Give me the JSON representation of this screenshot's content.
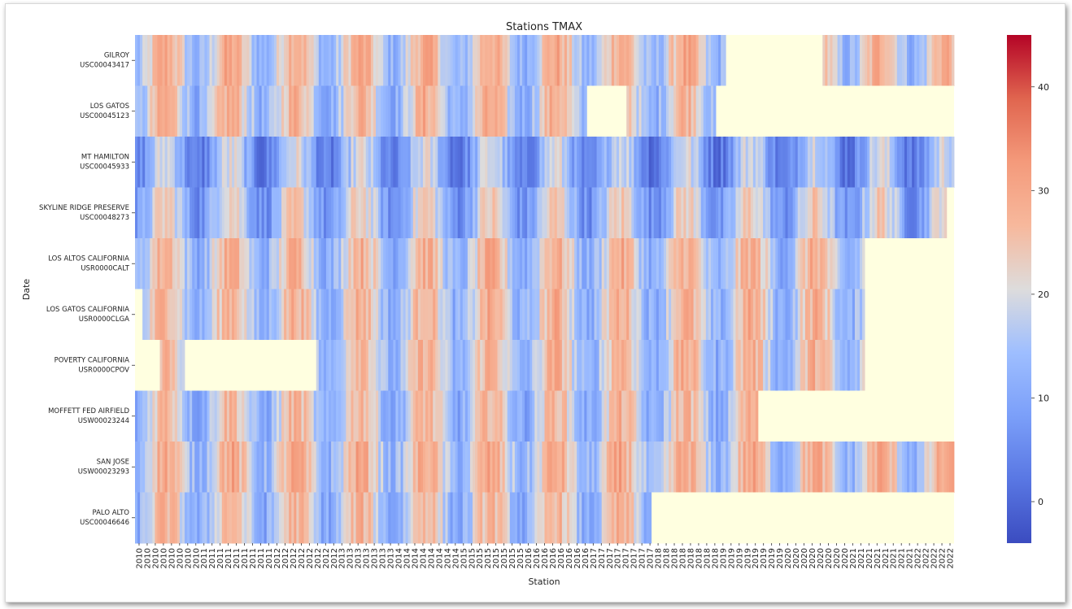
{
  "chart_data": {
    "type": "heatmap",
    "title": "Stations TMAX",
    "xlabel": "Station",
    "ylabel": "Date",
    "colormap": "coolwarm",
    "missing_color": "#ffffe0",
    "colorbar": {
      "min": -4,
      "max": 45,
      "ticks": [
        0,
        10,
        20,
        30,
        40
      ]
    },
    "rows": [
      {
        "name": "GILROY",
        "id": "USC00043417",
        "coverage": [
          [
            0,
            0.72
          ],
          [
            0.84,
            1.0
          ]
        ]
      },
      {
        "name": "LOS GATOS",
        "id": "USC00045123",
        "coverage": [
          [
            0,
            0.55
          ],
          [
            0.6,
            0.71
          ]
        ]
      },
      {
        "name": "MT HAMILTON",
        "id": "USC00045933",
        "coverage": [
          [
            0,
            1.0
          ]
        ]
      },
      {
        "name": "SKYLINE RIDGE PRESERVE",
        "id": "USC00048273",
        "coverage": [
          [
            0,
            0.99
          ]
        ]
      },
      {
        "name": "LOS ALTOS CALIFORNIA",
        "id": "USR0000CALT",
        "coverage": [
          [
            0,
            0.89
          ]
        ]
      },
      {
        "name": "LOS GATOS CALIFORNIA",
        "id": "USR0000CLGA",
        "coverage": [
          [
            0.01,
            0.89
          ]
        ]
      },
      {
        "name": "POVERTY CALIFORNIA",
        "id": "USR0000CPOV",
        "coverage": [
          [
            0.03,
            0.06
          ],
          [
            0.22,
            0.89
          ]
        ]
      },
      {
        "name": "MOFFETT FED AIRFIELD",
        "id": "USW00023244",
        "coverage": [
          [
            0,
            0.76
          ]
        ]
      },
      {
        "name": "SAN JOSE",
        "id": "USW00023293",
        "coverage": [
          [
            0,
            1.0
          ]
        ]
      },
      {
        "name": "PALO ALTO",
        "id": "USC00046646",
        "coverage": [
          [
            0,
            0.63
          ]
        ]
      }
    ],
    "x_tick_labels": [
      "2010",
      "2010",
      "2010",
      "2010",
      "2010",
      "2010",
      "2010",
      "2010",
      "2011",
      "2011",
      "2011",
      "2011",
      "2011",
      "2011",
      "2011",
      "2011",
      "2011",
      "2012",
      "2012",
      "2012",
      "2012",
      "2012",
      "2012",
      "2012",
      "2012",
      "2013",
      "2013",
      "2013",
      "2013",
      "2013",
      "2013",
      "2013",
      "2014",
      "2014",
      "2014",
      "2014",
      "2014",
      "2014",
      "2014",
      "2014",
      "2015",
      "2015",
      "2015",
      "2015",
      "2015",
      "2015",
      "2015",
      "2015",
      "2016",
      "2016",
      "2016",
      "2016",
      "2016",
      "2016",
      "2016",
      "2016",
      "2017",
      "2017",
      "2017",
      "2017",
      "2017",
      "2017",
      "2017",
      "2017",
      "2018",
      "2018",
      "2018",
      "2018",
      "2018",
      "2018",
      "2018",
      "2018",
      "2019",
      "2019",
      "2019",
      "2019",
      "2019",
      "2019",
      "2019",
      "2019",
      "2020",
      "2020",
      "2020",
      "2020",
      "2020",
      "2020",
      "2020",
      "2020",
      "2021",
      "2021",
      "2021",
      "2021",
      "2021",
      "2021",
      "2021",
      "2021",
      "2022",
      "2022",
      "2022",
      "2022",
      "2022"
    ]
  }
}
